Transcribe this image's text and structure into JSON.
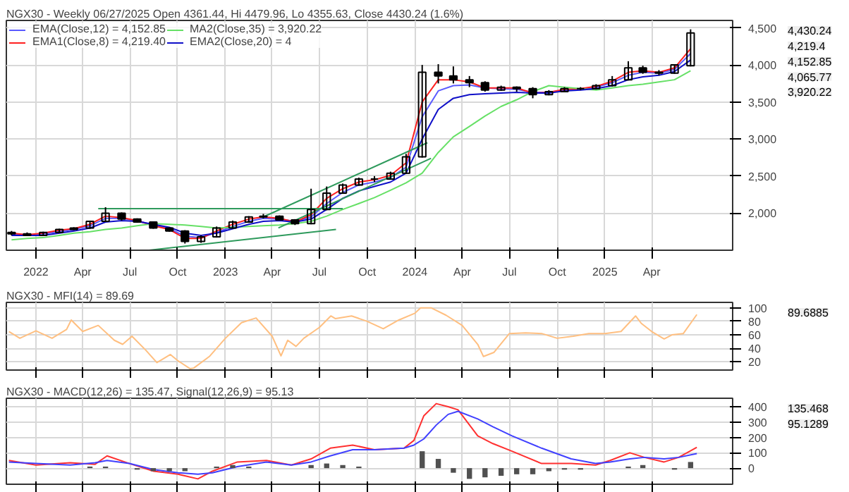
{
  "chart_data": [
    {
      "type": "candlestick",
      "title": "NGX30 - Weekly 06/27/2025 Open 4361.44, Hi 4479.96, Lo 4355.63, Close 4430.24 (1.6%)",
      "x": [
        "2021-11-15",
        "2021-12-15",
        "2022-01-15",
        "2022-02-15",
        "2022-03-15",
        "2022-04-15",
        "2022-05-15",
        "2022-06-15",
        "2022-07-15",
        "2022-08-15",
        "2022-09-15",
        "2022-10-15",
        "2022-11-15",
        "2022-12-15",
        "2023-01-15",
        "2023-02-15",
        "2023-03-15",
        "2023-04-15",
        "2023-05-15",
        "2023-06-15",
        "2023-07-15",
        "2023-08-15",
        "2023-09-15",
        "2023-10-15",
        "2023-11-15",
        "2023-12-15",
        "2024-01-15",
        "2024-02-15",
        "2024-03-15",
        "2024-04-15",
        "2024-05-15",
        "2024-06-15",
        "2024-07-15",
        "2024-08-15",
        "2024-09-15",
        "2024-10-15",
        "2024-11-15",
        "2024-12-15",
        "2025-01-15",
        "2025-02-15",
        "2025-03-15",
        "2025-04-15",
        "2025-05-15",
        "2025-06-15"
      ],
      "ohlc": [
        [
          1740,
          1760,
          1700,
          1720
        ],
        [
          1720,
          1740,
          1690,
          1700
        ],
        [
          1700,
          1750,
          1695,
          1740
        ],
        [
          1740,
          1790,
          1730,
          1780
        ],
        [
          1780,
          1810,
          1770,
          1800
        ],
        [
          1800,
          1900,
          1790,
          1890
        ],
        [
          1890,
          2080,
          1880,
          2000
        ],
        [
          2000,
          2010,
          1900,
          1920
        ],
        [
          1920,
          1930,
          1870,
          1880
        ],
        [
          1880,
          1890,
          1790,
          1800
        ],
        [
          1800,
          1810,
          1750,
          1760
        ],
        [
          1760,
          1770,
          1590,
          1620
        ],
        [
          1620,
          1700,
          1600,
          1680
        ],
        [
          1680,
          1820,
          1670,
          1800
        ],
        [
          1800,
          1900,
          1790,
          1880
        ],
        [
          1880,
          1960,
          1870,
          1950
        ],
        [
          1950,
          1990,
          1930,
          1960
        ],
        [
          1960,
          1970,
          1900,
          1910
        ],
        [
          1910,
          1920,
          1840,
          1860
        ],
        [
          1860,
          2330,
          1850,
          2050
        ],
        [
          2050,
          2360,
          2040,
          2270
        ],
        [
          2270,
          2400,
          2260,
          2380
        ],
        [
          2380,
          2480,
          2370,
          2460
        ],
        [
          2460,
          2500,
          2420,
          2460
        ],
        [
          2460,
          2560,
          2450,
          2540
        ],
        [
          2540,
          2800,
          2530,
          2760
        ],
        [
          2760,
          4000,
          2750,
          3900
        ],
        [
          3900,
          4010,
          3750,
          3850
        ],
        [
          3850,
          3980,
          3750,
          3800
        ],
        [
          3800,
          3850,
          3700,
          3760
        ],
        [
          3760,
          3780,
          3640,
          3660
        ],
        [
          3660,
          3720,
          3650,
          3700
        ],
        [
          3700,
          3710,
          3640,
          3680
        ],
        [
          3680,
          3700,
          3550,
          3600
        ],
        [
          3600,
          3660,
          3590,
          3640
        ],
        [
          3640,
          3700,
          3630,
          3680
        ],
        [
          3680,
          3700,
          3660,
          3680
        ],
        [
          3680,
          3740,
          3670,
          3720
        ],
        [
          3720,
          3850,
          3710,
          3800
        ],
        [
          3800,
          4050,
          3790,
          3960
        ],
        [
          3960,
          3990,
          3880,
          3900
        ],
        [
          3900,
          3930,
          3860,
          3890
        ],
        [
          3890,
          4010,
          3880,
          4000
        ],
        [
          3990,
          4479.96,
          3980,
          4430.24
        ]
      ],
      "series": [
        {
          "type": "line",
          "name": "EMA(Close,12) = 4,152.85",
          "color": "#5a5aff",
          "values": [
            1720,
            1700,
            1720,
            1750,
            1780,
            1830,
            1930,
            1930,
            1900,
            1840,
            1790,
            1690,
            1670,
            1740,
            1820,
            1890,
            1930,
            1920,
            1890,
            1950,
            2130,
            2280,
            2380,
            2420,
            2480,
            2620,
            3300,
            3650,
            3720,
            3730,
            3690,
            3680,
            3670,
            3630,
            3630,
            3660,
            3670,
            3700,
            3760,
            3860,
            3900,
            3890,
            3940,
            4152.85
          ]
        },
        {
          "type": "line",
          "name": "EMA1(Close,8) = 4,219.40",
          "color": "#ff2020",
          "values": [
            1730,
            1710,
            1730,
            1770,
            1790,
            1850,
            1960,
            1940,
            1900,
            1830,
            1780,
            1660,
            1660,
            1760,
            1850,
            1920,
            1950,
            1930,
            1880,
            1980,
            2200,
            2330,
            2420,
            2450,
            2510,
            2680,
            3500,
            3800,
            3800,
            3770,
            3690,
            3690,
            3690,
            3620,
            3630,
            3670,
            3680,
            3710,
            3780,
            3900,
            3920,
            3900,
            3960,
            4219.4
          ]
        },
        {
          "type": "line",
          "name": "MA2(Close,35) = 3,920.22",
          "color": "#66e066",
          "values": [
            1640,
            1660,
            1670,
            1700,
            1730,
            1750,
            1780,
            1800,
            1830,
            1860,
            1850,
            1840,
            1820,
            1800,
            1810,
            1820,
            1830,
            1840,
            1860,
            1890,
            1960,
            2050,
            2130,
            2210,
            2310,
            2410,
            2540,
            2820,
            3030,
            3170,
            3310,
            3440,
            3530,
            3640,
            3720,
            3700,
            3680,
            3660,
            3690,
            3720,
            3740,
            3770,
            3800,
            3920.22
          ]
        },
        {
          "type": "line",
          "name": "EMA2(Close,20) = 4",
          "color": "#1010c8",
          "values": [
            1700,
            1700,
            1700,
            1730,
            1760,
            1800,
            1880,
            1900,
            1890,
            1850,
            1810,
            1730,
            1700,
            1730,
            1790,
            1850,
            1890,
            1900,
            1880,
            1920,
            2050,
            2200,
            2300,
            2360,
            2420,
            2540,
            3000,
            3400,
            3550,
            3600,
            3610,
            3620,
            3630,
            3620,
            3620,
            3650,
            3660,
            3680,
            3720,
            3800,
            3840,
            3860,
            3910,
            4065.77
          ]
        },
        {
          "type": "line",
          "color": "#2e9a5c",
          "x": [
            "2022-05-01",
            "2023-08-15"
          ],
          "values": [
            2060,
            2060
          ]
        },
        {
          "type": "line",
          "color": "#2e9a5c",
          "x": [
            "2022-08-07",
            "2023-08-02"
          ],
          "values": [
            1500,
            1780
          ]
        },
        {
          "type": "line",
          "color": "#2e9a5c",
          "x": [
            "2023-03-12",
            "2024-01-25"
          ],
          "values": [
            1940,
            2950
          ]
        },
        {
          "type": "line",
          "color": "#2e9a5c",
          "x": [
            "2023-04-13",
            "2024-02-01"
          ],
          "values": [
            1800,
            2740
          ]
        }
      ],
      "xlim": [
        "2021-11-05",
        "2025-09-04"
      ],
      "ylim": [
        1500,
        4600
      ],
      "yticks": [
        {
          "value": 2000,
          "label": "2,000"
        },
        {
          "value": 2500,
          "label": "2,500"
        },
        {
          "value": 3000,
          "label": "3,000"
        },
        {
          "value": 3500,
          "label": "3,500"
        },
        {
          "value": 4000,
          "label": "4,000"
        },
        {
          "value": 4500,
          "label": "4,500"
        }
      ],
      "xticks": [
        {
          "value": "2022-01-01",
          "label": "2022"
        },
        {
          "value": "2022-04-01",
          "label": "Apr"
        },
        {
          "value": "2022-07-01",
          "label": "Jul"
        },
        {
          "value": "2022-10-01",
          "label": "Oct"
        },
        {
          "value": "2023-01-01",
          "label": "2023"
        },
        {
          "value": "2023-04-01",
          "label": "Apr"
        },
        {
          "value": "2023-07-01",
          "label": "Jul"
        },
        {
          "value": "2023-10-01",
          "label": "Oct"
        },
        {
          "value": "2024-01-01",
          "label": "2024"
        },
        {
          "value": "2024-04-01",
          "label": "Apr"
        },
        {
          "value": "2024-07-01",
          "label": "Jul"
        },
        {
          "value": "2024-10-01",
          "label": "Oct"
        },
        {
          "value": "2025-01-01",
          "label": "2025"
        },
        {
          "value": "2025-04-01",
          "label": "Apr"
        }
      ],
      "annotations": [
        "4,430.24",
        "4,219.4",
        "4,152.85",
        "4,065.77",
        "3,920.22"
      ],
      "grid": true,
      "legend": "top left",
      "marker": "none"
    },
    {
      "type": "line",
      "title": "NGX30 - MFI(14) = 89.69",
      "series": [
        {
          "color": "#ffbf80",
          "x": [
            "2021-11-10",
            "2021-12-01",
            "2022-01-01",
            "2022-02-01",
            "2022-03-01",
            "2022-03-10",
            "2022-04-01",
            "2022-05-01",
            "2022-06-01",
            "2022-06-17",
            "2022-07-05",
            "2022-08-01",
            "2022-08-22",
            "2022-09-17",
            "2022-10-01",
            "2022-10-25",
            "2022-11-01",
            "2022-12-01",
            "2023-01-01",
            "2023-02-01",
            "2023-03-01",
            "2023-04-01",
            "2023-04-18",
            "2023-05-01",
            "2023-05-17",
            "2023-06-01",
            "2023-07-01",
            "2023-07-23",
            "2023-08-01",
            "2023-09-01",
            "2023-10-01",
            "2023-11-01",
            "2023-12-01",
            "2024-01-01",
            "2024-01-12",
            "2024-02-01",
            "2024-03-01",
            "2024-04-01",
            "2024-05-01",
            "2024-05-12",
            "2024-06-01",
            "2024-07-01",
            "2024-08-01",
            "2024-09-01",
            "2024-10-01",
            "2024-11-01",
            "2024-12-01",
            "2025-01-01",
            "2025-02-01",
            "2025-03-01",
            "2025-03-12",
            "2025-04-01",
            "2025-04-25",
            "2025-05-10",
            "2025-06-01",
            "2025-06-27"
          ],
          "values": [
            65,
            55,
            66,
            55,
            68,
            82,
            65,
            74,
            52,
            46,
            58,
            37,
            19,
            31,
            22,
            10,
            11,
            28,
            55,
            78,
            85,
            58,
            29,
            52,
            43,
            55,
            71,
            88,
            84,
            88,
            80,
            69,
            82,
            92,
            100,
            100,
            89,
            74,
            46,
            28,
            34,
            62,
            63,
            62,
            55,
            58,
            62,
            62,
            65,
            88,
            77,
            65,
            54,
            60,
            62,
            90
          ]
        }
      ],
      "xlim": [
        "2021-11-05",
        "2025-09-04"
      ],
      "ylim": [
        8,
        108
      ],
      "yticks": [
        20,
        40,
        60,
        80,
        100
      ],
      "xticks": [
        {
          "value": "2022-01-01",
          "label": null
        },
        {
          "value": "2022-04-01",
          "label": null
        },
        {
          "value": "2022-07-01",
          "label": null
        },
        {
          "value": "2022-10-01",
          "label": null
        },
        {
          "value": "2023-01-01",
          "label": null
        },
        {
          "value": "2023-04-01",
          "label": null
        },
        {
          "value": "2023-07-01",
          "label": null
        },
        {
          "value": "2023-10-01",
          "label": null
        },
        {
          "value": "2024-01-01",
          "label": null
        },
        {
          "value": "2024-04-01",
          "label": null
        },
        {
          "value": "2024-07-01",
          "label": null
        },
        {
          "value": "2024-10-01",
          "label": null
        },
        {
          "value": "2025-01-01",
          "label": null
        },
        {
          "value": "2025-04-01",
          "label": null
        }
      ],
      "annotations": [
        "89.6885"
      ],
      "grid": true,
      "tick_labels": "y",
      "marker": "none"
    },
    {
      "type": "line",
      "title": "NGX30 - MACD(12,26) = 135.47, Signal(12,26,9) = 95.13",
      "x": [
        "2021-11-10",
        "2022-01-01",
        "2022-03-08",
        "2022-04-25",
        "2022-05-18",
        "2022-06-30",
        "2022-08-16",
        "2022-10-02",
        "2022-11-09",
        "2022-12-07",
        "2023-01-24",
        "2023-03-21",
        "2023-05-08",
        "2023-06-15",
        "2023-07-22",
        "2023-09-03",
        "2023-10-15",
        "2023-12-11",
        "2023-12-30",
        "2024-01-18",
        "2024-02-11",
        "2024-03-05",
        "2024-03-24",
        "2024-05-01",
        "2024-05-30",
        "2024-07-06",
        "2024-09-01",
        "2024-10-28",
        "2024-12-14",
        "2025-01-11",
        "2025-02-18",
        "2025-03-18",
        "2025-04-25",
        "2025-05-23",
        "2025-06-27"
      ],
      "series": [
        {
          "color": "#ff3030",
          "values": [
            50,
            20,
            35,
            25,
            80,
            30,
            -20,
            -40,
            -70,
            -20,
            40,
            50,
            20,
            60,
            130,
            150,
            120,
            130,
            180,
            340,
            420,
            400,
            380,
            210,
            160,
            110,
            30,
            30,
            20,
            50,
            100,
            70,
            40,
            70,
            135
          ]
        },
        {
          "color": "#4040ff",
          "values": [
            40,
            30,
            20,
            35,
            50,
            30,
            -10,
            -30,
            -40,
            -30,
            10,
            40,
            20,
            40,
            80,
            120,
            120,
            130,
            150,
            190,
            280,
            350,
            370,
            320,
            270,
            210,
            130,
            60,
            30,
            40,
            60,
            70,
            60,
            70,
            95
          ]
        },
        {
          "type": "bar",
          "color": "#505050",
          "x": [
            "2021-11-15",
            "2021-12-15",
            "2022-01-15",
            "2022-02-15",
            "2022-03-15",
            "2022-04-15",
            "2022-05-15",
            "2022-06-15",
            "2022-07-15",
            "2022-08-15",
            "2022-09-15",
            "2022-10-15",
            "2022-11-15",
            "2022-12-15",
            "2023-01-15",
            "2023-02-15",
            "2023-03-15",
            "2023-04-15",
            "2023-05-15",
            "2023-06-15",
            "2023-07-15",
            "2023-08-15",
            "2023-09-15",
            "2023-10-15",
            "2023-11-15",
            "2023-12-15",
            "2024-01-15",
            "2024-02-15",
            "2024-03-15",
            "2024-04-15",
            "2024-05-15",
            "2024-06-15",
            "2024-07-15",
            "2024-08-15",
            "2024-09-15",
            "2024-10-15",
            "2024-11-15",
            "2024-12-15",
            "2025-01-15",
            "2025-02-15",
            "2025-03-15",
            "2025-04-15",
            "2025-05-15",
            "2025-06-15"
          ],
          "values": [
            0,
            0,
            0,
            0,
            0,
            10,
            10,
            0,
            -10,
            -20,
            -20,
            -20,
            0,
            10,
            20,
            10,
            0,
            0,
            0,
            20,
            30,
            20,
            10,
            0,
            0,
            0,
            110,
            60,
            -30,
            -70,
            -60,
            -50,
            -40,
            -40,
            -20,
            -10,
            -10,
            0,
            0,
            10,
            20,
            0,
            -10,
            40
          ]
        }
      ],
      "xlim": [
        "2021-11-05",
        "2025-09-04"
      ],
      "ylim": [
        -105,
        455
      ],
      "yticks": [
        0,
        100,
        200,
        300,
        400
      ],
      "xticks": [
        {
          "value": "2022-01-01",
          "label": null
        },
        {
          "value": "2022-04-01",
          "label": null
        },
        {
          "value": "2022-07-01",
          "label": null
        },
        {
          "value": "2022-10-01",
          "label": null
        },
        {
          "value": "2023-01-01",
          "label": null
        },
        {
          "value": "2023-04-01",
          "label": null
        },
        {
          "value": "2023-07-01",
          "label": null
        },
        {
          "value": "2023-10-01",
          "label": null
        },
        {
          "value": "2024-01-01",
          "label": null
        },
        {
          "value": "2024-04-01",
          "label": null
        },
        {
          "value": "2024-07-01",
          "label": null
        },
        {
          "value": "2024-10-01",
          "label": null
        },
        {
          "value": "2025-01-01",
          "label": null
        },
        {
          "value": "2025-04-01",
          "label": null
        }
      ],
      "annotations": [
        "135.468",
        "95.1289"
      ],
      "grid": true,
      "tick_labels": "y",
      "marker": "none"
    }
  ]
}
